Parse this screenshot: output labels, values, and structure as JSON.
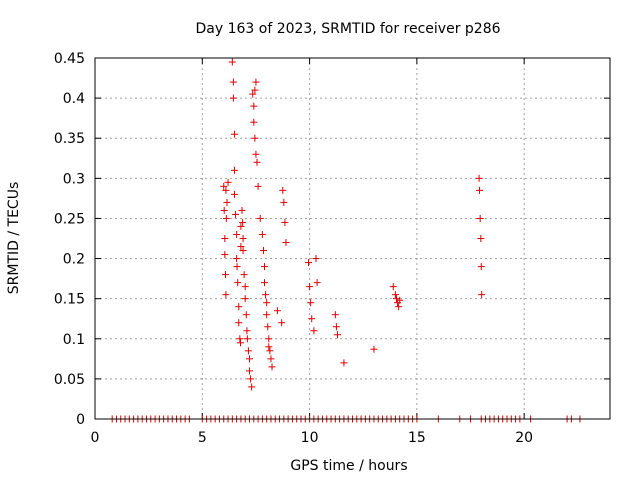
{
  "chart_data": {
    "type": "scatter",
    "title": "Day 163 of 2023, SRMTID for receiver p286",
    "xlabel": "GPS time / hours",
    "ylabel": "SRMTID / TECUs",
    "xlim": [
      0,
      24
    ],
    "ylim": [
      0,
      0.45
    ],
    "xticks": [
      0,
      5,
      10,
      15,
      20
    ],
    "yticks": [
      0,
      0.05,
      0.1,
      0.15,
      0.2,
      0.25,
      0.3,
      0.35,
      0.4,
      0.45
    ],
    "xtick_labels": [
      "0",
      "5",
      "10",
      "15",
      "20"
    ],
    "ytick_labels": [
      "0",
      "0.05",
      "0.1",
      "0.15",
      "0.2",
      "0.25",
      "0.3",
      "0.35",
      "0.4",
      "0.45"
    ],
    "grid": true,
    "marker": "+",
    "color": "#e00000",
    "series": [
      {
        "name": "SRMTID",
        "x": [
          6.0,
          6.02,
          6.05,
          6.05,
          6.08,
          6.1,
          6.1,
          6.12,
          6.15,
          6.2,
          6.4,
          6.45,
          6.45,
          6.5,
          6.5,
          6.5,
          6.55,
          6.6,
          6.6,
          6.62,
          6.65,
          6.7,
          6.7,
          6.75,
          6.78,
          6.8,
          6.8,
          6.85,
          6.88,
          6.9,
          6.9,
          6.95,
          7.0,
          7.0,
          7.05,
          7.08,
          7.1,
          7.15,
          7.2,
          7.2,
          7.25,
          7.3,
          7.35,
          7.4,
          7.4,
          7.45,
          7.45,
          7.5,
          7.5,
          7.55,
          7.6,
          7.7,
          7.8,
          7.85,
          7.9,
          7.9,
          7.95,
          8.0,
          8.0,
          8.05,
          8.1,
          8.1,
          8.15,
          8.2,
          8.25,
          8.5,
          8.7,
          8.75,
          8.8,
          8.85,
          8.9,
          9.95,
          10.0,
          10.05,
          10.1,
          10.2,
          10.3,
          10.35,
          11.2,
          11.25,
          11.3,
          11.6,
          13.0,
          13.9,
          14.0,
          14.05,
          14.1,
          14.15,
          14.2,
          17.9,
          17.92,
          17.95,
          17.98,
          18.0,
          18.02
        ],
        "y": [
          0.29,
          0.26,
          0.225,
          0.205,
          0.18,
          0.155,
          0.285,
          0.25,
          0.27,
          0.295,
          0.445,
          0.42,
          0.4,
          0.355,
          0.31,
          0.28,
          0.255,
          0.23,
          0.2,
          0.19,
          0.17,
          0.14,
          0.12,
          0.1,
          0.095,
          0.24,
          0.215,
          0.26,
          0.245,
          0.225,
          0.21,
          0.18,
          0.165,
          0.15,
          0.13,
          0.11,
          0.1,
          0.085,
          0.075,
          0.06,
          0.05,
          0.04,
          0.405,
          0.39,
          0.37,
          0.41,
          0.35,
          0.42,
          0.33,
          0.32,
          0.29,
          0.25,
          0.23,
          0.21,
          0.19,
          0.17,
          0.155,
          0.145,
          0.13,
          0.115,
          0.1,
          0.09,
          0.085,
          0.075,
          0.065,
          0.135,
          0.12,
          0.285,
          0.27,
          0.245,
          0.22,
          0.195,
          0.165,
          0.145,
          0.125,
          0.11,
          0.2,
          0.17,
          0.13,
          0.115,
          0.105,
          0.07,
          0.087,
          0.165,
          0.155,
          0.15,
          0.145,
          0.14,
          0.148,
          0.3,
          0.285,
          0.25,
          0.225,
          0.19,
          0.155
        ],
        "baseline_x": [
          0.8,
          1.0,
          1.2,
          1.4,
          1.6,
          1.8,
          2.0,
          2.2,
          2.4,
          2.6,
          2.8,
          3.0,
          3.2,
          3.4,
          3.6,
          3.8,
          4.0,
          4.2,
          4.4,
          5.0,
          5.2,
          5.4,
          5.6,
          5.8,
          6.0,
          6.2,
          6.4,
          6.6,
          6.8,
          7.0,
          7.2,
          7.4,
          7.6,
          7.8,
          8.0,
          8.2,
          8.4,
          8.6,
          8.8,
          9.0,
          9.2,
          9.4,
          9.6,
          9.8,
          10.0,
          10.2,
          10.4,
          10.6,
          10.8,
          11.0,
          11.2,
          11.4,
          11.6,
          11.8,
          12.0,
          12.2,
          12.4,
          12.6,
          12.8,
          13.0,
          13.2,
          13.4,
          13.6,
          13.8,
          14.0,
          14.2,
          14.4,
          14.6,
          14.8,
          15.0,
          16.0,
          17.0,
          17.5,
          18.0,
          18.2,
          18.4,
          18.6,
          18.8,
          19.0,
          19.2,
          19.4,
          19.6,
          19.8,
          20.3,
          22.0,
          22.2,
          22.6
        ]
      }
    ]
  }
}
